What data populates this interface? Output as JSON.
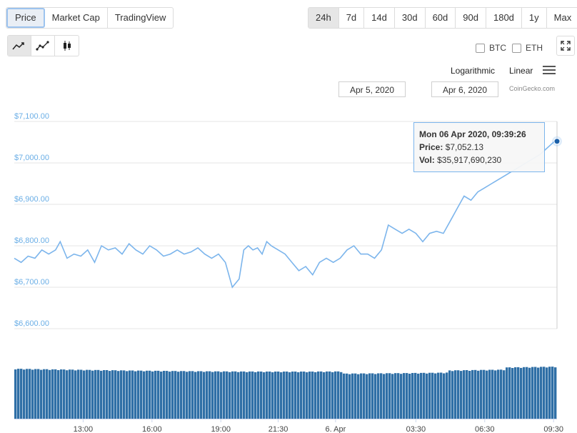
{
  "type_tabs": [
    {
      "label": "Price",
      "active": true
    },
    {
      "label": "Market Cap",
      "active": false
    },
    {
      "label": "TradingView",
      "active": false
    }
  ],
  "range_tabs": [
    {
      "label": "24h",
      "active": true
    },
    {
      "label": "7d",
      "active": false
    },
    {
      "label": "14d",
      "active": false
    },
    {
      "label": "30d",
      "active": false
    },
    {
      "label": "60d",
      "active": false
    },
    {
      "label": "90d",
      "active": false
    },
    {
      "label": "180d",
      "active": false
    },
    {
      "label": "1y",
      "active": false
    },
    {
      "label": "Max",
      "active": false
    }
  ],
  "chart_type_icons": [
    "line-chart-icon",
    "line-markers-chart-icon",
    "candlestick-chart-icon"
  ],
  "compare": {
    "btc": "BTC",
    "eth": "ETH"
  },
  "scale": {
    "log": "Logarithmic",
    "linear": "Linear"
  },
  "date_range": {
    "from": "Apr 5, 2020",
    "to": "Apr 6, 2020"
  },
  "credit": "CoinGecko.com",
  "tooltip": {
    "date": "Mon 06 Apr 2020, 09:39:26",
    "price_label": "Price:",
    "price": "$7,052.13",
    "vol_label": "Vol:",
    "vol": "$35,917,690,230"
  },
  "colors": {
    "line": "#7cb5ec",
    "volume": "#2f6fa6",
    "accent": "#1a5fa8"
  },
  "chart_data": {
    "type": "line",
    "y_ticks": [
      "$6,600.00",
      "$6,700.00",
      "$6,800.00",
      "$6,900.00",
      "$7,000.00",
      "$7,100.00"
    ],
    "ylim": [
      6600,
      7100
    ],
    "x_ticks": [
      "13:00",
      "16:00",
      "19:00",
      "21:30",
      "6. Apr",
      "03:30",
      "06:30",
      "09:30"
    ],
    "x_hours": [
      13,
      16,
      19,
      21.5,
      24,
      27.5,
      30.5,
      33.5
    ],
    "xlim": [
      10.0,
      33.65
    ],
    "series": [
      {
        "x": [
          10.0,
          10.3,
          10.6,
          10.9,
          11.2,
          11.5,
          11.8,
          12.0,
          12.3,
          12.6,
          12.9,
          13.2,
          13.5,
          13.8,
          14.1,
          14.4,
          14.7,
          15.0,
          15.3,
          15.6,
          15.9,
          16.2,
          16.5,
          16.8,
          17.1,
          17.4,
          17.7,
          18.0,
          18.3,
          18.6,
          18.9,
          19.2,
          19.5,
          19.8,
          20.0,
          20.2,
          20.4,
          20.6,
          20.8,
          21.0,
          21.2,
          21.5,
          21.8,
          22.1,
          22.4,
          22.7,
          23.0,
          23.3,
          23.6,
          23.9,
          24.2,
          24.5,
          24.8,
          25.1,
          25.4,
          25.7,
          26.0,
          26.3,
          26.6,
          26.9,
          27.2,
          27.5,
          27.8,
          28.1,
          28.4,
          28.7,
          29.0,
          29.3,
          29.6,
          29.9,
          30.2,
          30.5,
          30.8,
          31.1,
          31.4,
          31.7,
          32.0,
          32.3,
          32.6,
          32.9,
          33.1,
          33.3,
          33.5,
          33.65
        ],
        "y": [
          6770,
          6760,
          6775,
          6770,
          6790,
          6780,
          6790,
          6810,
          6770,
          6780,
          6775,
          6790,
          6760,
          6800,
          6790,
          6795,
          6780,
          6805,
          6790,
          6780,
          6800,
          6790,
          6775,
          6780,
          6790,
          6780,
          6785,
          6795,
          6780,
          6770,
          6780,
          6760,
          6700,
          6720,
          6790,
          6800,
          6790,
          6795,
          6780,
          6810,
          6800,
          6790,
          6780,
          6760,
          6740,
          6750,
          6730,
          6760,
          6770,
          6760,
          6770,
          6790,
          6800,
          6780,
          6780,
          6770,
          6790,
          6850,
          6840,
          6830,
          6840,
          6830,
          6810,
          6830,
          6835,
          6830,
          6860,
          6890,
          6920,
          6910,
          6930,
          6940,
          6950,
          6960,
          6970,
          6980,
          6990,
          7000,
          7010,
          7020,
          7030,
          7040,
          7050,
          7052.13
        ]
      }
    ],
    "volume_note": "relative volume bars"
  }
}
